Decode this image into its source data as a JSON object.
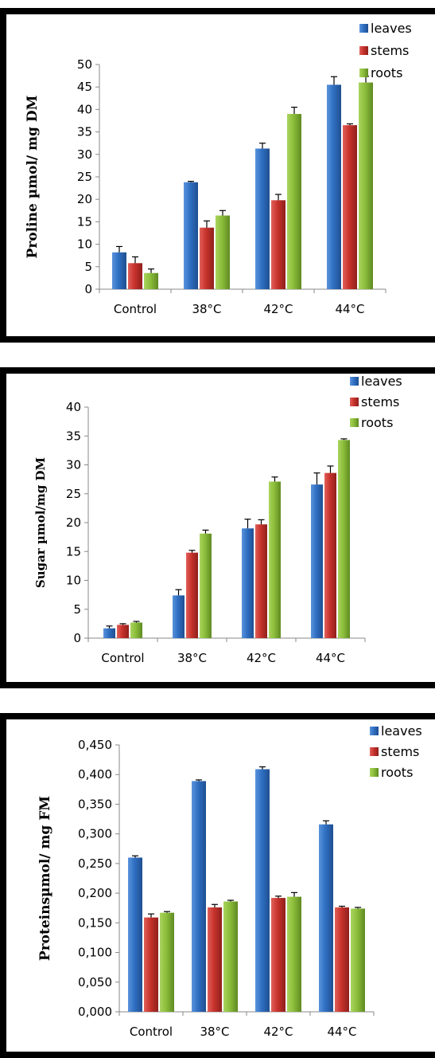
{
  "colors": {
    "leaves": "#2f6fc2",
    "stems": "#c8322c",
    "roots": "#8bbd3a",
    "frame": "#000000"
  },
  "chart_data": [
    {
      "type": "bar",
      "title": "",
      "xlabel": "",
      "ylabel": "Proline µmol/ mg DM",
      "categories": [
        "Control",
        "38°C",
        "42°C",
        "44°C"
      ],
      "ylim": [
        0,
        50
      ],
      "yticks": [
        "0",
        "5",
        "10",
        "15",
        "20",
        "25",
        "30",
        "35",
        "40",
        "45",
        "50"
      ],
      "legend": "top-right",
      "series": [
        {
          "name": "leaves",
          "values": [
            8.2,
            23.8,
            31.3,
            45.5
          ],
          "errors": [
            1.3,
            0.2,
            1.2,
            1.8
          ]
        },
        {
          "name": "stems",
          "values": [
            5.8,
            13.7,
            19.8,
            36.5
          ],
          "errors": [
            1.4,
            1.5,
            1.3,
            0.3
          ]
        },
        {
          "name": "roots",
          "values": [
            3.6,
            16.4,
            39.0,
            46.0
          ],
          "errors": [
            0.9,
            1.1,
            1.5,
            1.4
          ]
        }
      ]
    },
    {
      "type": "bar",
      "title": "",
      "xlabel": "",
      "ylabel": "Sugar µmol/mg DM",
      "categories": [
        "Control",
        "38°C",
        "42°C",
        "44°C"
      ],
      "ylim": [
        0,
        40
      ],
      "yticks": [
        "0",
        "5",
        "10",
        "15",
        "20",
        "25",
        "30",
        "35",
        "40"
      ],
      "legend": "top-right",
      "series": [
        {
          "name": "leaves",
          "values": [
            1.7,
            7.4,
            19.0,
            26.6
          ],
          "errors": [
            0.4,
            1.0,
            1.6,
            2.0
          ]
        },
        {
          "name": "stems",
          "values": [
            2.3,
            14.8,
            19.7,
            28.6
          ],
          "errors": [
            0.2,
            0.4,
            0.8,
            1.2
          ]
        },
        {
          "name": "roots",
          "values": [
            2.7,
            18.1,
            27.1,
            34.3
          ],
          "errors": [
            0.2,
            0.6,
            0.8,
            0.2
          ]
        }
      ]
    },
    {
      "type": "bar",
      "title": "",
      "xlabel": "",
      "ylabel": "Proteinsµmol/ mg FM",
      "categories": [
        "Control",
        "38°C",
        "42°C",
        "44°C"
      ],
      "ylim": [
        0,
        0.45
      ],
      "yticks": [
        "0,000",
        "0,050",
        "0,100",
        "0,150",
        "0,200",
        "0,250",
        "0,300",
        "0,350",
        "0,400",
        "0,450"
      ],
      "legend": "top-right",
      "series": [
        {
          "name": "leaves",
          "values": [
            0.26,
            0.389,
            0.409,
            0.316
          ],
          "errors": [
            0.003,
            0.002,
            0.004,
            0.006
          ]
        },
        {
          "name": "stems",
          "values": [
            0.159,
            0.176,
            0.192,
            0.176
          ],
          "errors": [
            0.006,
            0.005,
            0.003,
            0.002
          ]
        },
        {
          "name": "roots",
          "values": [
            0.167,
            0.186,
            0.194,
            0.174
          ],
          "errors": [
            0.002,
            0.002,
            0.007,
            0.002
          ]
        }
      ]
    }
  ]
}
